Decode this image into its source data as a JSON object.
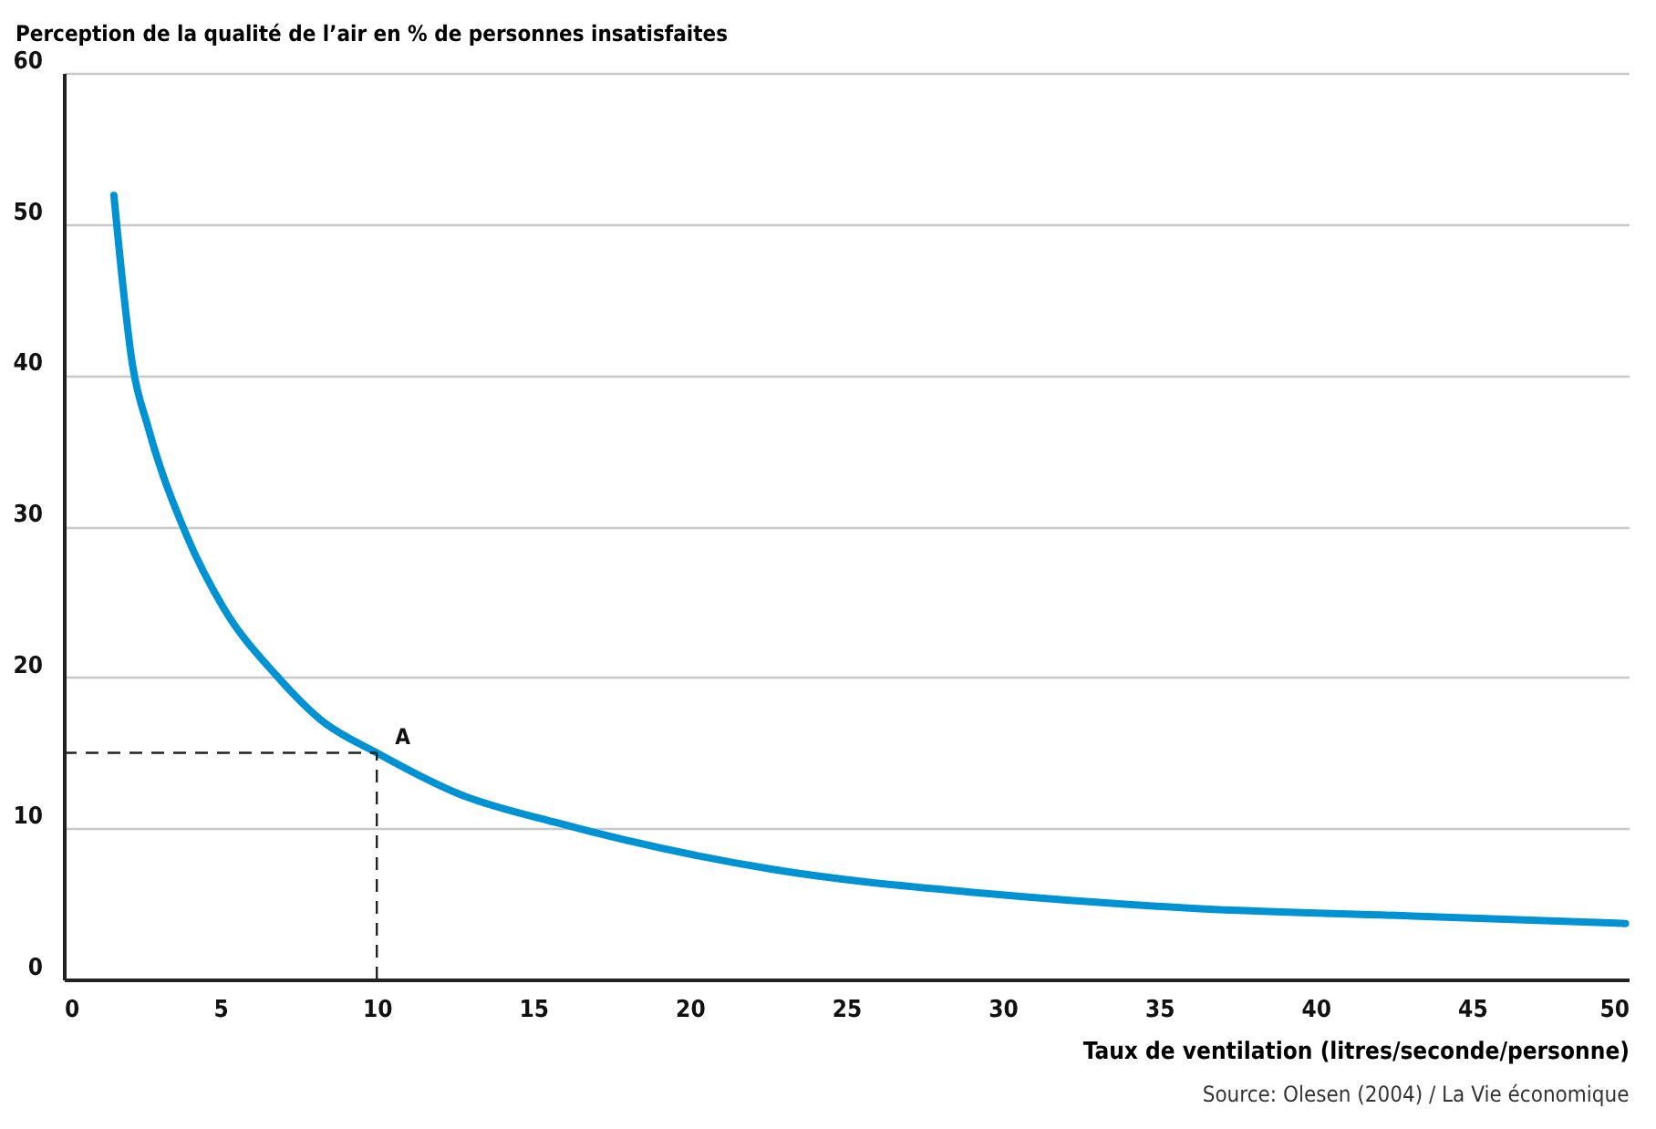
{
  "chart_data": {
    "type": "line",
    "ylabel": "Perception de la qualité de l’air en % de personnes insatisfaites",
    "xlabel": "Taux de ventilation (litres/seconde/personne)",
    "annotations": [
      {
        "text": "A",
        "x": 10,
        "y": 15
      },
      "Source: Olesen (2004) / La Vie économique"
    ],
    "x": [
      1.6,
      2.2,
      2.7,
      3.9,
      5.1,
      6.8,
      8.2,
      10,
      12.6,
      15.7,
      22.6,
      29.4,
      36.2,
      43.1,
      49.9
    ],
    "series": [
      {
        "color": "#0092d2",
        "values": [
          51.9,
          40.6,
          36.5,
          29.5,
          24.6,
          20.1,
          17.2,
          15,
          12.3,
          10.4,
          7.3,
          5.7,
          4.7,
          4.2,
          3.7
        ]
      }
    ],
    "xlim": [
      0,
      50
    ],
    "xticks": [
      0,
      5,
      10,
      15,
      20,
      25,
      30,
      35,
      40,
      45,
      50
    ],
    "ylim": [
      0,
      60
    ],
    "yticks": [
      0,
      10,
      20,
      30,
      40,
      50,
      60
    ],
    "grid": "y",
    "marker": "none",
    "line_style": "solid"
  }
}
